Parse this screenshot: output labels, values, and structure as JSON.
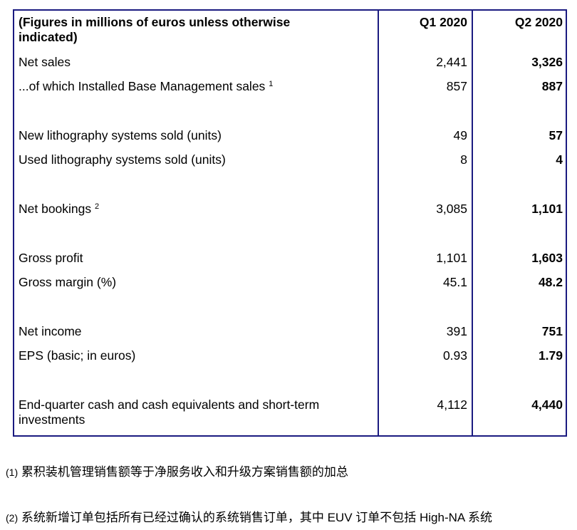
{
  "header": {
    "label": "(Figures in millions of euros unless otherwise indicated)",
    "col1": "Q1 2020",
    "col2": "Q2 2020"
  },
  "rows": [
    {
      "label": "Net sales",
      "sup": "",
      "q1": "2,441",
      "q2": "3,326"
    },
    {
      "label": "...of which Installed Base Management sales",
      "sup": "1",
      "q1": "857",
      "q2": "887"
    },
    {
      "label": "New lithography systems sold (units)",
      "sup": "",
      "q1": "49",
      "q2": "57"
    },
    {
      "label": "Used lithography systems sold (units)",
      "sup": "",
      "q1": "8",
      "q2": "4"
    },
    {
      "label": "Net bookings",
      "sup": "2",
      "q1": "3,085",
      "q2": "1,101"
    },
    {
      "label": "Gross profit",
      "sup": "",
      "q1": "1,101",
      "q2": "1,603"
    },
    {
      "label": "Gross margin (%)",
      "sup": "",
      "q1": "45.1",
      "q2": "48.2"
    },
    {
      "label": "Net income",
      "sup": "",
      "q1": "391",
      "q2": "751"
    },
    {
      "label": "EPS (basic; in euros)",
      "sup": "",
      "q1": "0.93",
      "q2": "1.79"
    },
    {
      "label": "End-quarter cash and cash equivalents and short-term investments",
      "sup": "",
      "q1": "4,112",
      "q2": "4,440"
    }
  ],
  "footnotes": [
    {
      "mark": "(1)",
      "text": "累积装机管理销售额等于净服务收入和升级方案销售额的加总"
    },
    {
      "mark": "(2)",
      "text": "系统新增订单包括所有已经过确认的系统销售订单，其中 EUV 订单不包括 High-NA 系统"
    }
  ]
}
